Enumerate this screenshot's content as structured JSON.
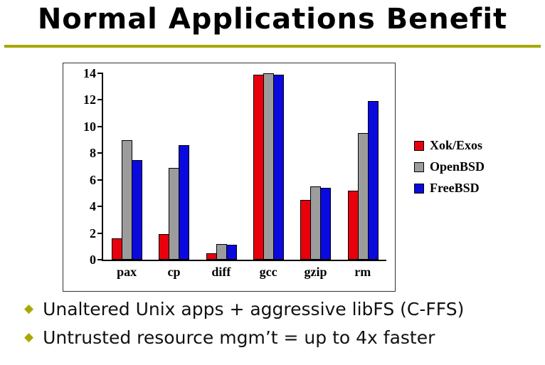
{
  "slide": {
    "title": "Normal Applications Benefit",
    "accent_color": "#a8a800",
    "bullets": [
      "Unaltered Unix apps + aggressive libFS (C-FFS)",
      "Untrusted resource mgm’t = up to 4x faster"
    ],
    "bullet_marker": "◆"
  },
  "chart_data": {
    "type": "bar",
    "categories": [
      "pax",
      "cp",
      "diff",
      "gcc",
      "gzip",
      "rm"
    ],
    "series": [
      {
        "name": "Xok/Exos",
        "color": "#e8000d",
        "values": [
          1.6,
          1.9,
          0.5,
          13.9,
          4.5,
          5.2
        ]
      },
      {
        "name": "OpenBSD",
        "color": "#9c9c9c",
        "values": [
          9.0,
          6.9,
          1.2,
          14.0,
          5.5,
          9.5
        ]
      },
      {
        "name": "FreeBSD",
        "color": "#0a0adf",
        "values": [
          7.5,
          8.6,
          1.1,
          13.9,
          5.4,
          11.9
        ]
      }
    ],
    "title": "",
    "xlabel": "",
    "ylabel": "",
    "ylim": [
      0,
      14
    ],
    "yticks": [
      0,
      2,
      4,
      6,
      8,
      10,
      12,
      14
    ],
    "grid": false,
    "legend_position": "right"
  }
}
